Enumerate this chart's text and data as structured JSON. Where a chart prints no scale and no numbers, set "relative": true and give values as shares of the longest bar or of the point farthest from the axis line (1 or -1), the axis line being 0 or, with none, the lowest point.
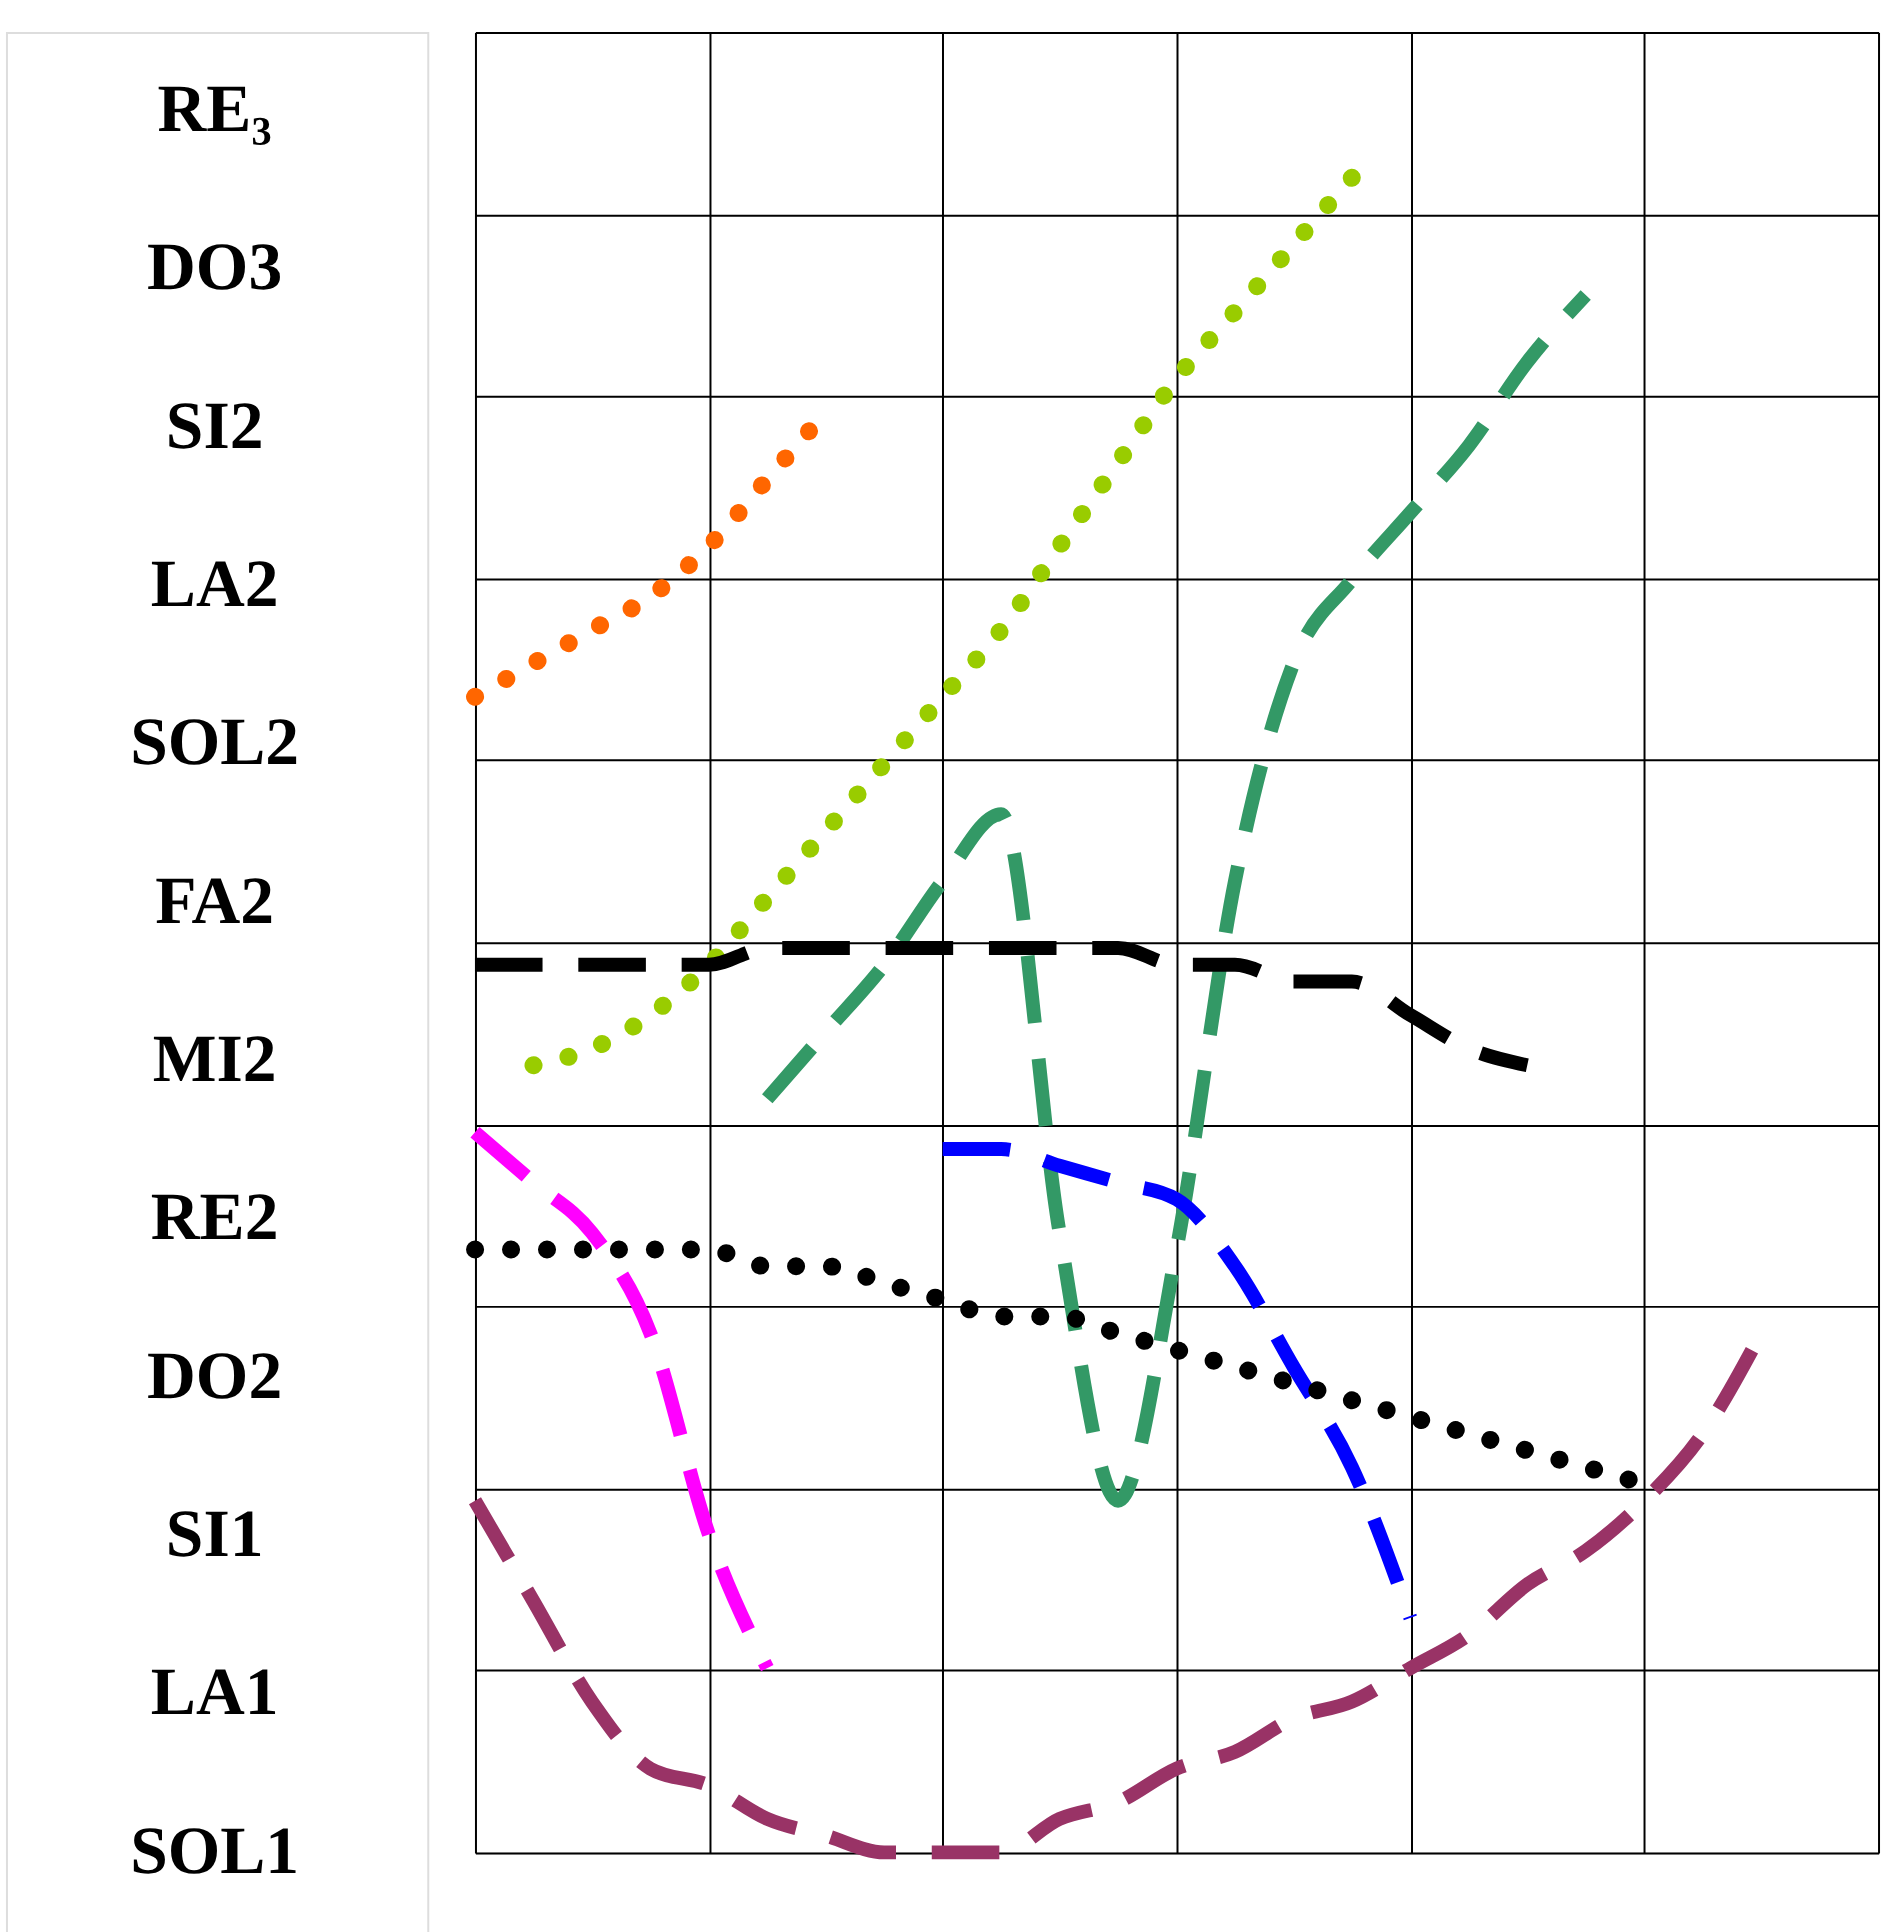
{
  "chart_data": {
    "type": "line",
    "relative": true,
    "grid": true,
    "categories": [
      null,
      null,
      null,
      null,
      null,
      null,
      null,
      null,
      null,
      null,
      null,
      null,
      null,
      null,
      null,
      null,
      null,
      null,
      null,
      null,
      null,
      null,
      null,
      null,
      null
    ],
    "annotations": [
      "RE₃",
      "DO3",
      "SI2",
      "LA2",
      "SOL2",
      "FA2",
      "MI2",
      "RE2",
      "DO2",
      "SI1",
      "LA1",
      "SOL1"
    ],
    "series": [
      {
        "color": "#ff6600",
        "line_style": "dotted",
        "values": [
          0.69,
          0.71,
          0.73,
          0.75,
          0.78,
          0.82,
          0.86,
          null,
          null,
          null,
          null,
          null,
          null,
          null,
          null,
          null,
          null,
          null,
          null,
          null,
          null,
          null,
          null,
          null,
          null
        ]
      },
      {
        "color": "#99cc00",
        "line_style": "dotted",
        "values": [
          null,
          0.47,
          0.48,
          0.5,
          0.53,
          0.57,
          0.61,
          0.65,
          0.69,
          0.73,
          0.78,
          0.83,
          0.88,
          0.92,
          0.96,
          1,
          null,
          null,
          null,
          null,
          null,
          null,
          null,
          null,
          null
        ]
      },
      {
        "color": "#339966",
        "line_style": "dashed",
        "values": [
          null,
          null,
          null,
          null,
          null,
          0.45,
          0.49,
          0.53,
          0.58,
          0.62,
          0.37,
          0.21,
          0.36,
          0.58,
          0.71,
          0.76,
          0.8,
          0.84,
          0.89,
          0.93,
          null,
          null,
          null,
          null,
          null
        ]
      },
      {
        "color": "#000000",
        "line_style": "dashed",
        "values": [
          0.53,
          0.53,
          0.53,
          0.53,
          0.53,
          0.54,
          0.54,
          0.54,
          0.54,
          0.54,
          0.54,
          0.54,
          0.53,
          0.53,
          0.52,
          0.52,
          0.5,
          0.48,
          0.47,
          null,
          null,
          null,
          null,
          null,
          null
        ]
      },
      {
        "color": "#ff00ff",
        "line_style": "dashed",
        "values": [
          0.43,
          0.4,
          0.37,
          0.31,
          0.19,
          0.11,
          null,
          null,
          null,
          null,
          null,
          null,
          null,
          null,
          null,
          null,
          null,
          null,
          null,
          null,
          null,
          null,
          null,
          null,
          null
        ]
      },
      {
        "color": "#0000ff",
        "line_style": "dashed",
        "values": [
          null,
          null,
          null,
          null,
          null,
          null,
          null,
          null,
          0.42,
          0.42,
          0.41,
          0.4,
          0.39,
          0.35,
          0.29,
          0.23,
          0.14,
          null,
          null,
          null,
          null,
          null,
          null,
          null,
          null
        ]
      },
      {
        "color": "#000000",
        "line_style": "dotted",
        "values": [
          0.36,
          0.36,
          0.36,
          0.36,
          0.36,
          0.35,
          0.35,
          0.34,
          0.33,
          0.32,
          0.32,
          0.31,
          0.3,
          0.29,
          0.28,
          0.27,
          0.26,
          0.25,
          0.24,
          0.23,
          0.22,
          null,
          null,
          null,
          null
        ]
      },
      {
        "color": "#993366",
        "line_style": "dashed",
        "values": [
          0.21,
          0.15,
          0.09,
          0.05,
          0.04,
          0.02,
          0.01,
          0,
          0,
          0,
          0.02,
          0.03,
          0.05,
          0.06,
          0.08,
          0.09,
          0.11,
          0.13,
          0.16,
          0.18,
          0.21,
          0.25,
          0.31,
          null,
          null
        ]
      }
    ]
  }
}
